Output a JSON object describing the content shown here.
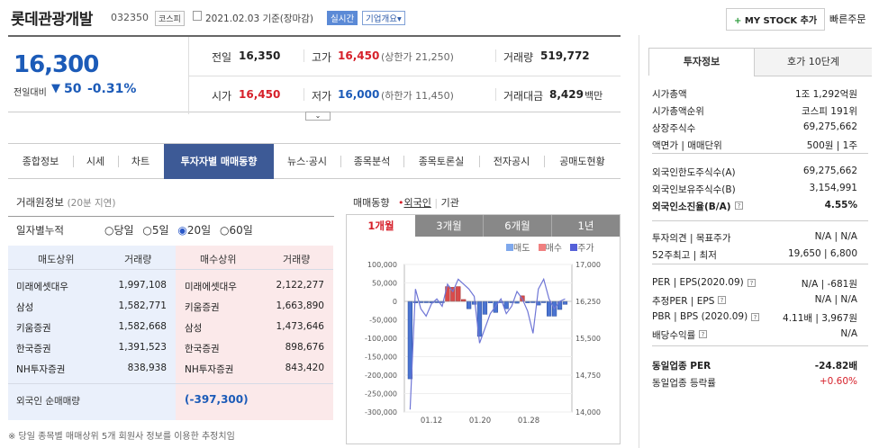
{
  "header": {
    "company": "롯데관광개발",
    "code": "032350",
    "market_badge": "코스피",
    "date": "2021.02.03",
    "date_note": "기준(장마감)",
    "realtime_badge": "실시간",
    "overview_label": "기업개요",
    "overview_arrow": "▾",
    "mystock_label": "MY STOCK 추가",
    "mystock_plus": "+",
    "quick_order": "빠른주문"
  },
  "price": {
    "current": "16,300",
    "change_label": "전일대비",
    "change_arrow": "▼",
    "change": "50",
    "change_pct": "-0.31%"
  },
  "quote": {
    "prev_label": "전일",
    "prev": "16,350",
    "high_label": "고가",
    "high": "16,450",
    "upper_limit": "(상한가 21,250)",
    "volume_label": "거래량",
    "volume": "519,772",
    "open_label": "시가",
    "open": "16,450",
    "low_label": "저가",
    "low": "16,000",
    "lower_limit": "(하한가 11,450)",
    "amount_label": "거래대금",
    "amount": "8,429",
    "amount_unit": "백만"
  },
  "tabs": [
    "종합정보",
    "시세",
    "차트",
    "투자자별 매매동향",
    "뉴스·공시",
    "종목분석",
    "종목토론실",
    "전자공시",
    "공매도현황"
  ],
  "trade": {
    "title": "거래원정보",
    "delay": "(20분 지연)",
    "period_label": "일자별누적",
    "periods": [
      "당일",
      "5일",
      "20일",
      "60일"
    ],
    "sell_header": "매도상위",
    "vol_header": "거래량",
    "buy_header": "매수상위",
    "vol_header2": "거래량",
    "rows": [
      {
        "seller": "미래에셋대우",
        "sell_vol": "1,997,108",
        "buyer": "미래에셋대우",
        "buy_vol": "2,122,277"
      },
      {
        "seller": "삼성",
        "sell_vol": "1,582,771",
        "buyer": "키움증권",
        "buy_vol": "1,663,890"
      },
      {
        "seller": "키움증권",
        "sell_vol": "1,582,668",
        "buyer": "삼성",
        "buy_vol": "1,473,646"
      },
      {
        "seller": "한국증권",
        "sell_vol": "1,391,523",
        "buyer": "한국증권",
        "buy_vol": "898,676"
      },
      {
        "seller": "NH투자증권",
        "sell_vol": "838,938",
        "buyer": "NH투자증권",
        "buy_vol": "843,420"
      }
    ],
    "foreign_label": "외국인 순매매량",
    "foreign_value": "(-397,300)",
    "footnote": "※ 당일 종목별 매매상위 5개 회원사 정보를 이용한 추정치임"
  },
  "trend": {
    "title": "매매동향",
    "sub_foreign": "외국인",
    "sub_org": "기관",
    "divider": "|",
    "tabs": [
      "1개월",
      "3개월",
      "6개월",
      "1년"
    ],
    "legend": {
      "sell": "매도",
      "buy": "매수",
      "price": "주가"
    }
  },
  "chart_data": {
    "type": "bar",
    "left_axis": {
      "ylim": [
        -300000,
        100000
      ],
      "ticks": [
        "100,000",
        "50,000",
        "0",
        "-50,000",
        "-100,000",
        "-150,000",
        "-200,000",
        "-250,000",
        "-300,000"
      ]
    },
    "right_axis": {
      "ylim": [
        14000,
        17000
      ],
      "ticks": [
        "17,000",
        "16,250",
        "15,500",
        "14,750",
        "14,000"
      ]
    },
    "x_ticks": [
      "01.12",
      "01.20",
      "01.28"
    ],
    "net_foreign": [
      -210000,
      -4000,
      -3000,
      -3000,
      -4000,
      -3000,
      -2000,
      40000,
      38000,
      40000,
      5000,
      -20000,
      -8000,
      -95000,
      -35000,
      -4000,
      -30000,
      -3000,
      -20000,
      -3000,
      -5000,
      15000,
      -4000,
      -3000,
      -10000,
      -3000,
      -40000,
      -40000,
      -22000,
      -8000
    ],
    "price_line": [
      14050,
      16500,
      16100,
      15950,
      16200,
      16300,
      16150,
      16600,
      16450,
      16700,
      16600,
      16500,
      16350,
      15400,
      15700,
      16000,
      16150,
      16300,
      16000,
      16150,
      16450,
      16300,
      16050,
      15600,
      16500,
      16700,
      16300,
      16100,
      16250,
      16300
    ],
    "colors": {
      "sell": "#4a74d1",
      "buy": "#d84a4a",
      "price": "#6f76d6"
    }
  },
  "invest": {
    "tab_active": "투자정보",
    "tab_other": "호가 10단계",
    "rows1": [
      {
        "l": "시가총액",
        "r": "1조 1,292억원"
      },
      {
        "l": "시가총액순위",
        "r": "코스피 191위"
      },
      {
        "l": "상장주식수",
        "r": "69,275,662"
      },
      {
        "l": "액면가 | 매매단위",
        "r": "500원 | 1주"
      }
    ],
    "rows2": [
      {
        "l": "외국인한도주식수(A)",
        "r": "69,275,662"
      },
      {
        "l": "외국인보유주식수(B)",
        "r": "3,154,991"
      },
      {
        "l": "외국인소진율(B/A)",
        "r": "4.55%"
      }
    ],
    "rows3": [
      {
        "l": "투자의견 | 목표주가",
        "r": "N/A | N/A"
      },
      {
        "l": "52주최고 | 최저",
        "r": "19,650 | 6,800"
      }
    ],
    "rows4": [
      {
        "l": "PER | EPS(2020.09)",
        "r": "N/A | -681원"
      },
      {
        "l": "추정PER | EPS",
        "r": "N/A | N/A"
      },
      {
        "l": "PBR | BPS (2020.09)",
        "r": "4.11배 | 3,967원"
      },
      {
        "l": "배당수익률",
        "r": "N/A"
      }
    ],
    "rows5": [
      {
        "l": "동일업종 PER",
        "r": "-24.82배"
      },
      {
        "l": "동일업종 등락률",
        "r": "+0.60%"
      }
    ]
  }
}
